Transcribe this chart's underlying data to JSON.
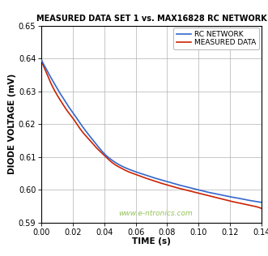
{
  "title": "MEASURED DATA SET 1 vs. MAX16828 RC NETWORK",
  "xlabel": "TIME (s)",
  "ylabel": "DIODE VOLTAGE (mV)",
  "xlim": [
    0,
    0.14
  ],
  "ylim": [
    0.59,
    0.65
  ],
  "xticks": [
    0.0,
    0.02,
    0.04,
    0.06,
    0.08,
    0.1,
    0.12,
    0.14
  ],
  "yticks": [
    0.59,
    0.6,
    0.61,
    0.62,
    0.63,
    0.64,
    0.65
  ],
  "rc_color": "#3366cc",
  "measured_color": "#cc2200",
  "background_color": "#ffffff",
  "grid_color": "#aaaaaa",
  "border_color": "#000000",
  "watermark": "www.e-ntronics.com",
  "watermark_color": "#88bb44",
  "legend_labels": [
    "RC NETWORK",
    "MEASURED DATA"
  ],
  "rc_x": [
    0.0,
    0.001,
    0.003,
    0.005,
    0.008,
    0.01,
    0.013,
    0.016,
    0.02,
    0.025,
    0.03,
    0.035,
    0.04,
    0.045,
    0.05,
    0.055,
    0.06,
    0.065,
    0.07,
    0.075,
    0.08,
    0.085,
    0.09,
    0.095,
    0.1,
    0.105,
    0.11,
    0.115,
    0.12,
    0.125,
    0.13,
    0.135,
    0.14
  ],
  "rc_y": [
    0.6395,
    0.6385,
    0.6368,
    0.635,
    0.6325,
    0.6308,
    0.6285,
    0.6262,
    0.6235,
    0.62,
    0.6168,
    0.6138,
    0.611,
    0.609,
    0.6075,
    0.6064,
    0.6055,
    0.6047,
    0.6039,
    0.6032,
    0.6025,
    0.6018,
    0.6012,
    0.6006,
    0.6,
    0.5994,
    0.5989,
    0.5984,
    0.5979,
    0.5975,
    0.597,
    0.5966,
    0.5962
  ],
  "meas_x": [
    0.0,
    0.001,
    0.003,
    0.005,
    0.008,
    0.01,
    0.013,
    0.016,
    0.02,
    0.025,
    0.03,
    0.035,
    0.04,
    0.045,
    0.05,
    0.055,
    0.06,
    0.065,
    0.07,
    0.075,
    0.08,
    0.085,
    0.09,
    0.095,
    0.1,
    0.105,
    0.11,
    0.115,
    0.12,
    0.125,
    0.13,
    0.135,
    0.14
  ],
  "meas_y": [
    0.6395,
    0.638,
    0.6358,
    0.6335,
    0.6305,
    0.6288,
    0.6265,
    0.6243,
    0.6218,
    0.6183,
    0.6155,
    0.6128,
    0.6105,
    0.6083,
    0.6068,
    0.6056,
    0.6047,
    0.6038,
    0.603,
    0.6022,
    0.6015,
    0.6008,
    0.6002,
    0.5996,
    0.599,
    0.5984,
    0.5978,
    0.5972,
    0.5966,
    0.5961,
    0.5956,
    0.5951,
    0.5944
  ]
}
